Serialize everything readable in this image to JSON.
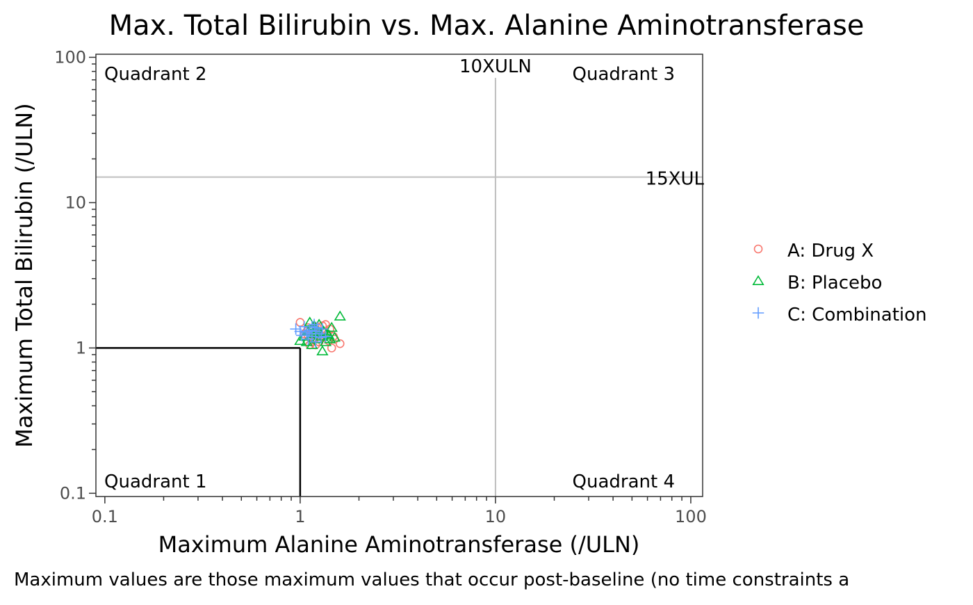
{
  "chart_data": {
    "type": "scatter",
    "title": "Max. Total Bilirubin vs. Max. Alanine Aminotransferase",
    "xlabel": "Maximum Alanine Aminotransferase (/ULN)",
    "ylabel": "Maximum Total Bilirubin (/ULN)",
    "caption": "Maximum values are those maximum values that occur post-baseline (no time constraints a",
    "x_scale": "log10",
    "y_scale": "log10",
    "xlim": [
      0.09,
      115
    ],
    "ylim": [
      0.095,
      105
    ],
    "x_ticks": [
      {
        "value": 0.1,
        "label": "0.1"
      },
      {
        "value": 1,
        "label": "1"
      },
      {
        "value": 10,
        "label": "10"
      },
      {
        "value": 100,
        "label": "100"
      }
    ],
    "y_ticks": [
      {
        "value": 0.1,
        "label": "0.1"
      },
      {
        "value": 1,
        "label": "1"
      },
      {
        "value": 10,
        "label": "10"
      },
      {
        "value": 100,
        "label": "100"
      }
    ],
    "grid": false,
    "reference_lines": [
      {
        "orientation": "vertical",
        "value": 10,
        "label": "10XULN",
        "color": "#bebebe"
      },
      {
        "orientation": "horizontal",
        "value": 15,
        "label": "15XUL",
        "color": "#bebebe"
      },
      {
        "orientation": "vertical-segment",
        "value": 1,
        "to": 1,
        "color": "#000000"
      },
      {
        "orientation": "horizontal-segment",
        "value": 1,
        "to": 1,
        "color": "#000000"
      }
    ],
    "quadrant_labels": [
      {
        "text": "Quadrant 2",
        "position": "top-left"
      },
      {
        "text": "Quadrant 3",
        "position": "top-right"
      },
      {
        "text": "Quadrant 1",
        "position": "bottom-left"
      },
      {
        "text": "Quadrant 4",
        "position": "bottom-right"
      }
    ],
    "legend": {
      "position": "right"
    },
    "series": [
      {
        "name": "A: Drug X",
        "marker": "circle",
        "color": "#f8766d",
        "points": [
          [
            1.0,
            1.5
          ],
          [
            1.05,
            1.25
          ],
          [
            1.08,
            1.3
          ],
          [
            1.1,
            1.2
          ],
          [
            1.12,
            1.05
          ],
          [
            1.15,
            1.35
          ],
          [
            1.18,
            1.15
          ],
          [
            1.2,
            1.28
          ],
          [
            1.22,
            1.4
          ],
          [
            1.25,
            1.1
          ],
          [
            1.28,
            1.22
          ],
          [
            1.3,
            1.3
          ],
          [
            1.32,
            1.18
          ],
          [
            1.35,
            1.45
          ],
          [
            1.38,
            1.25
          ],
          [
            1.4,
            1.12
          ],
          [
            1.42,
            1.35
          ],
          [
            1.45,
            1.0
          ],
          [
            1.48,
            1.2
          ],
          [
            1.5,
            1.15
          ],
          [
            1.6,
            1.07
          ],
          [
            1.1,
            1.38
          ],
          [
            1.15,
            1.1
          ],
          [
            1.2,
            1.05
          ],
          [
            1.3,
            1.42
          ]
        ]
      },
      {
        "name": "B: Placebo",
        "marker": "triangle",
        "color": "#00ba38",
        "points": [
          [
            1.0,
            1.12
          ],
          [
            1.05,
            1.2
          ],
          [
            1.08,
            1.1
          ],
          [
            1.1,
            1.3
          ],
          [
            1.12,
            1.5
          ],
          [
            1.15,
            1.05
          ],
          [
            1.18,
            1.25
          ],
          [
            1.2,
            1.35
          ],
          [
            1.22,
            1.15
          ],
          [
            1.25,
            1.45
          ],
          [
            1.28,
            1.2
          ],
          [
            1.3,
            0.95
          ],
          [
            1.32,
            1.3
          ],
          [
            1.35,
            1.1
          ],
          [
            1.38,
            1.25
          ],
          [
            1.4,
            1.22
          ],
          [
            1.42,
            1.15
          ],
          [
            1.45,
            1.38
          ],
          [
            1.5,
            1.18
          ],
          [
            1.6,
            1.65
          ],
          [
            1.25,
            1.28
          ],
          [
            1.18,
            1.42
          ]
        ]
      },
      {
        "name": "C: Combination",
        "marker": "plus",
        "color": "#619cff",
        "points": [
          [
            0.95,
            1.35
          ],
          [
            1.0,
            1.3
          ],
          [
            1.02,
            1.22
          ],
          [
            1.05,
            1.4
          ],
          [
            1.08,
            1.28
          ],
          [
            1.1,
            1.15
          ],
          [
            1.12,
            1.32
          ],
          [
            1.15,
            1.2
          ],
          [
            1.18,
            1.45
          ],
          [
            1.2,
            1.1
          ],
          [
            1.22,
            1.38
          ],
          [
            1.25,
            1.25
          ],
          [
            1.28,
            1.18
          ],
          [
            1.3,
            1.35
          ],
          [
            1.35,
            1.2
          ],
          [
            1.2,
            1.3
          ],
          [
            1.15,
            1.4
          ],
          [
            1.1,
            1.25
          ]
        ]
      }
    ]
  }
}
